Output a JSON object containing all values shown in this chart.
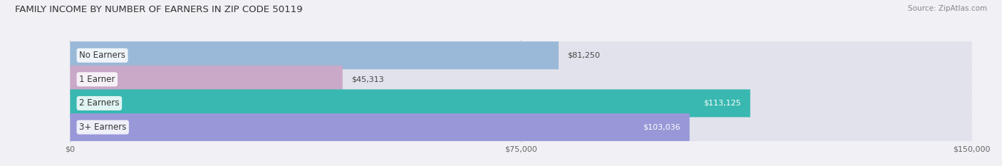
{
  "title": "FAMILY INCOME BY NUMBER OF EARNERS IN ZIP CODE 50119",
  "source": "Source: ZipAtlas.com",
  "categories": [
    "No Earners",
    "1 Earner",
    "2 Earners",
    "3+ Earners"
  ],
  "values": [
    81250,
    45313,
    113125,
    103036
  ],
  "bar_colors": [
    "#9ab8d8",
    "#c9a8c8",
    "#38b8b0",
    "#9898d8"
  ],
  "label_colors": [
    "#444444",
    "#444444",
    "#444444",
    "#444444"
  ],
  "value_label_colors": [
    "#444444",
    "#444444",
    "#ffffff",
    "#ffffff"
  ],
  "value_labels": [
    "$81,250",
    "$45,313",
    "$113,125",
    "$103,036"
  ],
  "xlim": [
    0,
    150000
  ],
  "xticks": [
    0,
    75000,
    150000
  ],
  "xticklabels": [
    "$0",
    "$75,000",
    "$150,000"
  ],
  "background_color": "#f0f0f5",
  "bar_background_color": "#e2e2ec",
  "bar_height": 0.58,
  "title_fontsize": 9.5,
  "label_fontsize": 8.5,
  "value_fontsize": 8.0,
  "tick_fontsize": 8.0,
  "source_fontsize": 7.5
}
